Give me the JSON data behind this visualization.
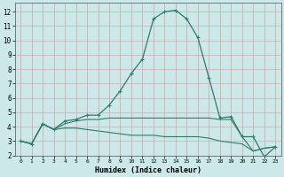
{
  "xlabel": "Humidex (Indice chaleur)",
  "bg_color": "#cce8e8",
  "grid_color_v": "#d4a0a0",
  "grid_color_h": "#c8b0b0",
  "line_color": "#2e7b6b",
  "xlim": [
    -0.5,
    23.5
  ],
  "ylim": [
    2.0,
    12.6
  ],
  "yticks": [
    2,
    3,
    4,
    5,
    6,
    7,
    8,
    9,
    10,
    11,
    12
  ],
  "xticks": [
    0,
    1,
    2,
    3,
    4,
    5,
    6,
    7,
    8,
    9,
    10,
    11,
    12,
    13,
    14,
    15,
    16,
    17,
    18,
    19,
    20,
    21,
    22,
    23
  ],
  "line1_x": [
    0,
    1,
    2,
    3,
    4,
    5,
    6,
    7,
    8,
    9,
    10,
    11,
    12,
    13,
    14,
    15,
    16,
    17,
    18,
    19,
    20,
    21,
    22,
    23
  ],
  "line1_y": [
    3.0,
    2.8,
    4.2,
    3.8,
    4.4,
    4.5,
    4.8,
    4.8,
    5.5,
    6.5,
    7.7,
    8.7,
    11.5,
    12.0,
    12.1,
    11.5,
    10.2,
    7.4,
    4.6,
    4.7,
    3.3,
    3.3,
    1.9,
    2.6
  ],
  "line2_x": [
    0,
    1,
    2,
    3,
    4,
    5,
    6,
    7,
    8,
    9,
    10,
    11,
    12,
    13,
    14,
    15,
    16,
    17,
    18,
    19,
    20,
    21,
    22,
    23
  ],
  "line2_y": [
    3.0,
    2.8,
    4.2,
    3.8,
    4.2,
    4.4,
    4.5,
    4.5,
    4.6,
    4.6,
    4.6,
    4.6,
    4.6,
    4.6,
    4.6,
    4.6,
    4.6,
    4.6,
    4.5,
    4.5,
    3.3,
    2.3,
    2.5,
    2.6
  ],
  "line3_x": [
    0,
    1,
    2,
    3,
    4,
    5,
    6,
    7,
    8,
    9,
    10,
    11,
    12,
    13,
    14,
    15,
    16,
    17,
    18,
    19,
    20,
    21,
    22,
    23
  ],
  "line3_y": [
    3.0,
    2.8,
    4.2,
    3.8,
    3.9,
    3.9,
    3.8,
    3.7,
    3.6,
    3.5,
    3.4,
    3.4,
    3.4,
    3.3,
    3.3,
    3.3,
    3.3,
    3.2,
    3.0,
    2.9,
    2.8,
    2.3,
    2.5,
    2.6
  ]
}
